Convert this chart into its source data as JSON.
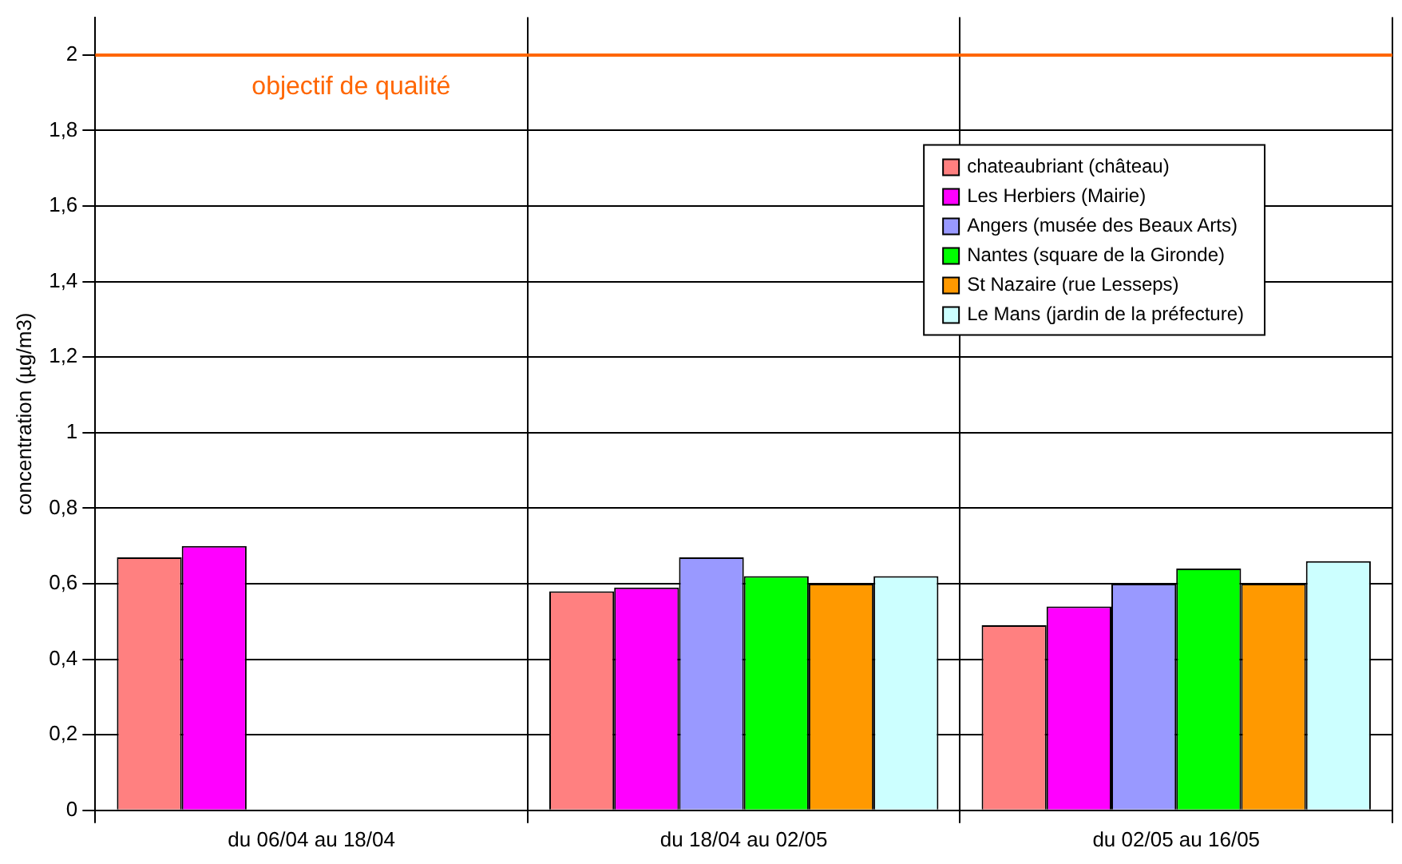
{
  "chart_data": {
    "type": "bar",
    "ylabel": "concentration (µg/m3)",
    "categories": [
      "du 06/04 au 18/04",
      "du 18/04 au 02/05",
      "du 02/05 au 16/05"
    ],
    "series": [
      {
        "name": "chateaubriant (château)",
        "color": "#ff8080",
        "values": [
          0.67,
          0.58,
          0.49
        ]
      },
      {
        "name": "Les Herbiers (Mairie)",
        "color": "#ff00ff",
        "values": [
          0.7,
          0.59,
          0.54
        ]
      },
      {
        "name": "Angers (musée des Beaux Arts)",
        "color": "#9999ff",
        "values": [
          null,
          0.67,
          0.6
        ]
      },
      {
        "name": "Nantes (square de la Gironde)",
        "color": "#00ff00",
        "values": [
          null,
          0.62,
          0.64
        ]
      },
      {
        "name": "St Nazaire (rue Lesseps)",
        "color": "#ff9900",
        "values": [
          null,
          0.6,
          0.6
        ]
      },
      {
        "name": "Le Mans (jardin de la préfecture)",
        "color": "#ccffff",
        "values": [
          null,
          0.62,
          0.66
        ]
      }
    ],
    "ylim": [
      0,
      2.1
    ],
    "yticks": [
      0,
      {
        "value": 0.2,
        "label": "0,2"
      },
      {
        "value": 0.4,
        "label": "0,4"
      },
      {
        "value": 0.6,
        "label": "0,6"
      },
      {
        "value": 0.8,
        "label": "0,8"
      },
      1,
      {
        "value": 1.2,
        "label": "1,2"
      },
      {
        "value": 1.4,
        "label": "1,4"
      },
      {
        "value": 1.6,
        "label": "1,6"
      },
      {
        "value": 1.8,
        "label": "1,8"
      },
      2
    ],
    "ref_lines": [
      {
        "axis": "y",
        "value": 2,
        "label": "objectif de qualité",
        "color": "#ff6600"
      }
    ],
    "grid": true,
    "legend": "top right"
  }
}
